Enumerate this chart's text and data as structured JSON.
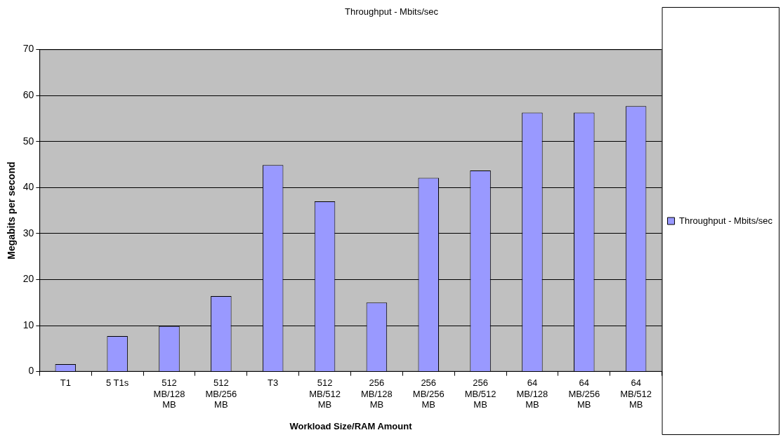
{
  "chart_data": {
    "type": "bar",
    "title": "Throughput - Mbits/sec",
    "xlabel": "Workload Size/RAM Amount",
    "ylabel": "Megabits per second",
    "categories": [
      "T1",
      "5 T1s",
      "512 MB/128 MB",
      "512 MB/256 MB",
      "T3",
      "512 MB/512 MB",
      "256 MB/128 MB",
      "256 MB/256 MB",
      "256 MB/512 MB",
      "64 MB/128 MB",
      "64 MB/256 MB",
      "64 MB/512 MB"
    ],
    "series": [
      {
        "name": "Throughput - Mbits/sec",
        "color": "#9999ff",
        "values": [
          1.6,
          7.7,
          9.9,
          16.4,
          44.9,
          37.0,
          15.0,
          42.1,
          43.7,
          56.3,
          56.3,
          57.7
        ]
      }
    ],
    "ylim": [
      0,
      70
    ],
    "yticks": [
      0,
      10,
      20,
      30,
      40,
      50,
      60,
      70
    ],
    "grid": "y",
    "legend": "right"
  }
}
